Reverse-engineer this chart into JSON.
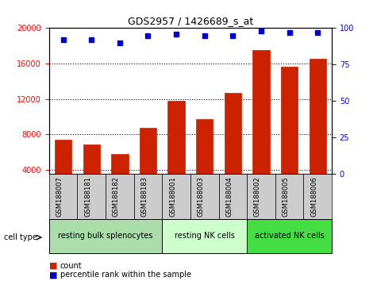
{
  "title": "GDS2957 / 1426689_s_at",
  "samples": [
    "GSM188007",
    "GSM188181",
    "GSM188182",
    "GSM188183",
    "GSM188001",
    "GSM188003",
    "GSM188004",
    "GSM188002",
    "GSM188005",
    "GSM188006"
  ],
  "counts": [
    7400,
    6900,
    5800,
    8700,
    11800,
    9700,
    12700,
    17500,
    15600,
    16500
  ],
  "percentiles": [
    92,
    92,
    90,
    95,
    96,
    95,
    95,
    98,
    97,
    97
  ],
  "groups": [
    {
      "label": "resting bulk splenocytes",
      "start": 0,
      "end": 4,
      "color": "#aaddaa"
    },
    {
      "label": "resting NK cells",
      "start": 4,
      "end": 7,
      "color": "#ccffcc"
    },
    {
      "label": "activated NK cells",
      "start": 7,
      "end": 10,
      "color": "#44dd44"
    }
  ],
  "bar_color": "#cc2200",
  "dot_color": "#0000cc",
  "ylim_left": [
    3500,
    20000
  ],
  "ylim_right": [
    0,
    100
  ],
  "yticks_left": [
    4000,
    8000,
    12000,
    16000,
    20000
  ],
  "yticks_right": [
    0,
    25,
    50,
    75,
    100
  ],
  "tick_bg_color": "#cccccc",
  "cell_type_label": "cell type",
  "legend_count_label": "count",
  "legend_pct_label": "percentile rank within the sample"
}
